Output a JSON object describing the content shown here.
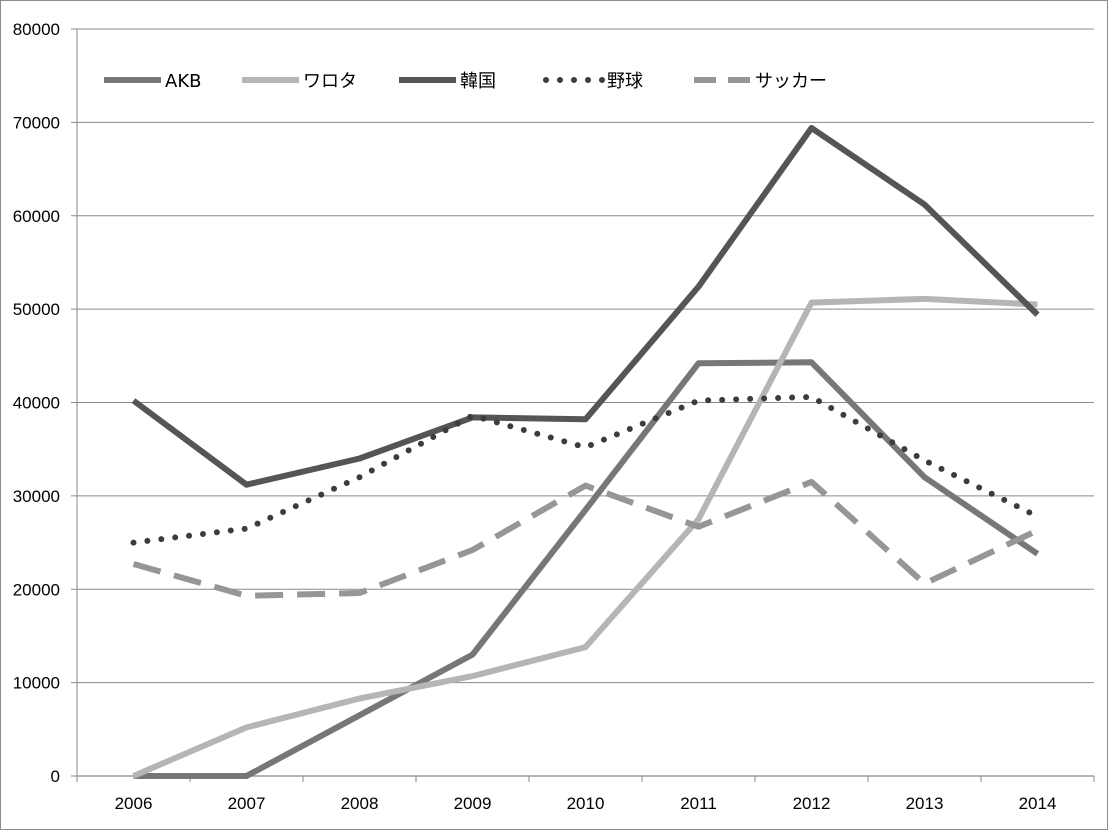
{
  "chart_data": {
    "type": "line",
    "title": "",
    "xlabel": "",
    "ylabel": "",
    "categories": [
      "2006",
      "2007",
      "2008",
      "2009",
      "2010",
      "2011",
      "2012",
      "2013",
      "2014"
    ],
    "ylim": [
      0,
      80000
    ],
    "y_ticks": [
      "0",
      "10000",
      "20000",
      "30000",
      "40000",
      "50000",
      "60000",
      "70000",
      "80000"
    ],
    "grid": true,
    "legend_position": "top",
    "series": [
      {
        "name": "AKB",
        "values": [
          0,
          0,
          6500,
          13000,
          28500,
          44200,
          44300,
          32000,
          23800
        ],
        "color": "#777777",
        "style": "solid"
      },
      {
        "name": "ワロタ",
        "values": [
          0,
          5200,
          8300,
          10700,
          13800,
          27500,
          50700,
          51100,
          50500
        ],
        "color": "#b5b5b5",
        "style": "solid"
      },
      {
        "name": "韓国",
        "values": [
          40200,
          31200,
          34000,
          38400,
          38200,
          52400,
          69400,
          61200,
          49400
        ],
        "color": "#555555",
        "style": "solid"
      },
      {
        "name": "野球",
        "values": [
          25000,
          26500,
          32000,
          38600,
          35200,
          40200,
          40600,
          33800,
          27800
        ],
        "color": "#3c3c3c",
        "style": "dotted"
      },
      {
        "name": "サッカー",
        "values": [
          22700,
          19300,
          19600,
          24200,
          31100,
          26700,
          31500,
          20600,
          26300
        ],
        "color": "#969696",
        "style": "dashed"
      }
    ]
  }
}
